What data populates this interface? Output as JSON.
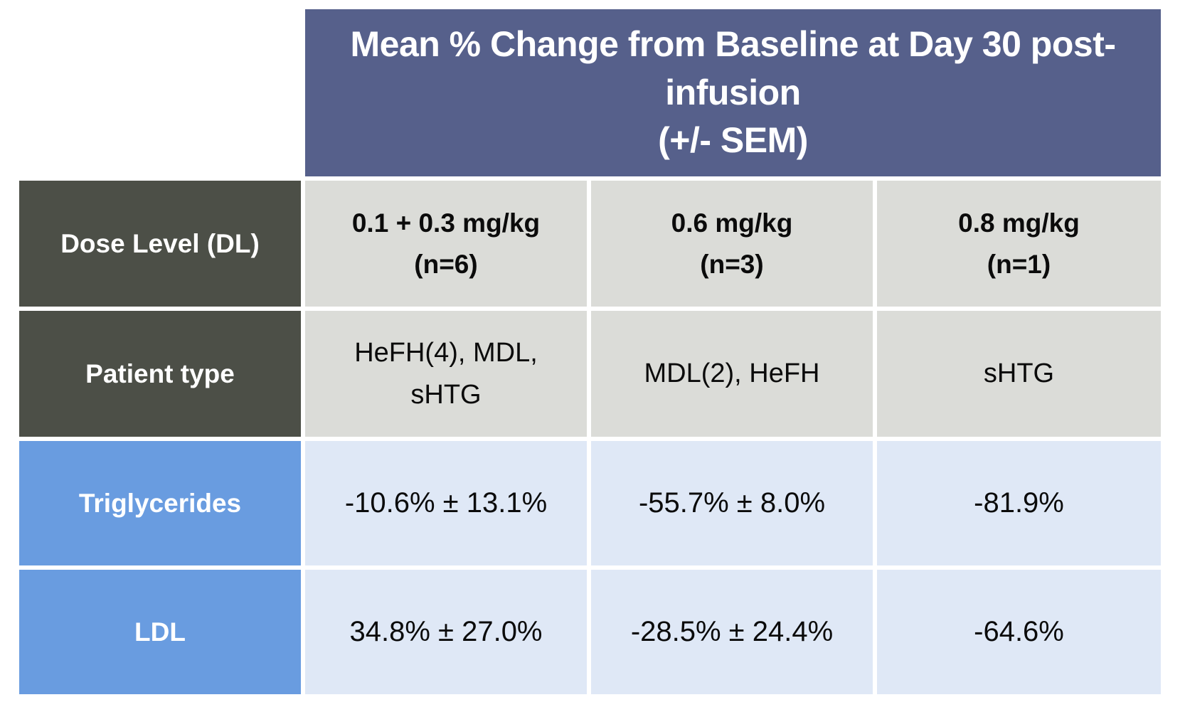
{
  "colors": {
    "header_bg": "#56608B",
    "dark_label_bg": "#4C4F47",
    "blue_label_bg": "#699CE0",
    "light_gray_bg": "#DBDCD8",
    "light_blue_bg": "#DFE8F6",
    "header_text": "#ffffff",
    "value_text": "#0b0b0b"
  },
  "table": {
    "main_header": "Mean % Change from Baseline at Day 30 post-\ninfusion\n(+/- SEM)",
    "rows": [
      {
        "header": "Dose Level (DL)",
        "cells": [
          "0.1 + 0.3 mg/kg\n(n=6)",
          "0.6 mg/kg\n(n=3)",
          "0.8 mg/kg\n(n=1)"
        ]
      },
      {
        "header": "Patient type",
        "cells": [
          "HeFH(4), MDL,\nsHTG",
          "MDL(2), HeFH",
          "sHTG"
        ]
      },
      {
        "header": "Triglycerides",
        "cells": [
          "-10.6% ± 13.1%",
          "-55.7% ± 8.0%",
          "-81.9%"
        ]
      },
      {
        "header": "LDL",
        "cells": [
          "34.8% ± 27.0%",
          "-28.5% ± 24.4%",
          "-64.6%"
        ]
      }
    ]
  },
  "chart_data": {
    "type": "table",
    "title": "Mean % Change from Baseline at Day 30 post-infusion (+/- SEM)",
    "columns": [
      "Dose Level (DL)",
      "0.1 + 0.3 mg/kg (n=6)",
      "0.6 mg/kg (n=3)",
      "0.8 mg/kg (n=1)"
    ],
    "rows": [
      [
        "Patient type",
        "HeFH(4), MDL, sHTG",
        "MDL(2), HeFH",
        "sHTG"
      ],
      [
        "Triglycerides",
        "-10.6% ± 13.1%",
        "-55.7% ± 8.0%",
        "-81.9%"
      ],
      [
        "LDL",
        "34.8% ± 27.0%",
        "-28.5% ± 24.4%",
        "-64.6%"
      ]
    ],
    "notes": {
      "dose_levels": [
        "0.1 + 0.3 mg/kg",
        "0.6 mg/kg",
        "0.8 mg/kg"
      ],
      "n_per_dose": [
        6,
        3,
        1
      ],
      "triglycerides_mean_pct_change": [
        -10.6,
        -55.7,
        -81.9
      ],
      "triglycerides_sem_pct": [
        13.1,
        8.0,
        null
      ],
      "ldl_mean_pct_change": [
        34.8,
        -28.5,
        -64.6
      ],
      "ldl_sem_pct": [
        27.0,
        24.4,
        null
      ]
    }
  }
}
